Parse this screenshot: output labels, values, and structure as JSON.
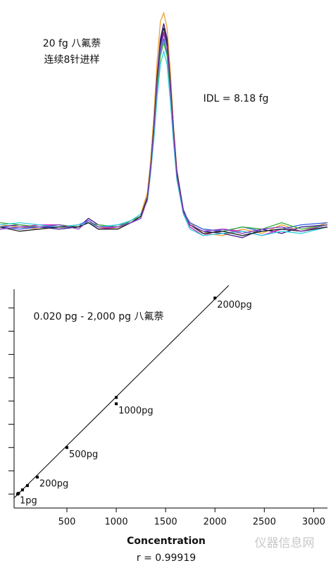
{
  "chart_data": [
    {
      "type": "line",
      "title": "20 fg 八氟萘",
      "subtitle": "连续8针进样",
      "annotation": "IDL = 8.18 fg",
      "xlim": [
        0,
        100
      ],
      "ylim": [
        -10,
        105
      ],
      "x": [
        0,
        6,
        12,
        18,
        24,
        27,
        30,
        36,
        40,
        43,
        45,
        46,
        47,
        48,
        49,
        50,
        51,
        52,
        53,
        54,
        56,
        58,
        62,
        68,
        74,
        80,
        86,
        92,
        100
      ],
      "series": [
        {
          "color": "#f0a030",
          "values": [
            1,
            0,
            -1,
            0,
            1,
            2,
            0,
            -1,
            3,
            6,
            16,
            31,
            52,
            78,
            96,
            100,
            93,
            73,
            47,
            27,
            7,
            2,
            -3,
            -4,
            -1,
            -3,
            1,
            -2,
            2
          ]
        },
        {
          "color": "#3a1a8a",
          "values": [
            0,
            1,
            0,
            -1,
            0,
            4,
            1,
            0,
            2,
            5,
            14,
            28,
            47,
            71,
            88,
            95,
            88,
            68,
            45,
            26,
            8,
            1,
            -2,
            -3,
            -5,
            -1,
            -3,
            0,
            1
          ]
        },
        {
          "color": "#d020c0",
          "values": [
            -1,
            0,
            1,
            1,
            0,
            2,
            -1,
            0,
            2,
            4,
            13,
            27,
            45,
            68,
            85,
            91,
            84,
            66,
            44,
            25,
            7,
            0,
            -4,
            -1,
            -2,
            -4,
            -1,
            -2,
            0
          ]
        },
        {
          "color": "#3060e0",
          "values": [
            0,
            -1,
            0,
            0,
            1,
            3,
            0,
            1,
            2,
            5,
            13,
            26,
            44,
            66,
            82,
            88,
            81,
            63,
            42,
            24,
            7,
            2,
            -1,
            -2,
            0,
            -2,
            -1,
            1,
            2
          ]
        },
        {
          "color": "#40b040",
          "values": [
            2,
            1,
            0,
            1,
            0,
            2,
            1,
            0,
            3,
            5,
            13,
            26,
            43,
            64,
            80,
            86,
            80,
            62,
            41,
            24,
            6,
            1,
            -3,
            -2,
            0,
            -1,
            2,
            -1,
            1
          ]
        },
        {
          "color": "#30d0e0",
          "values": [
            1,
            2,
            1,
            0,
            1,
            2,
            0,
            1,
            3,
            6,
            12,
            25,
            41,
            61,
            76,
            82,
            76,
            59,
            39,
            22,
            6,
            -1,
            -4,
            -3,
            -2,
            -4,
            -2,
            -3,
            0
          ]
        },
        {
          "color": "#202020",
          "values": [
            0,
            -2,
            -1,
            0,
            0,
            2,
            -1,
            -1,
            2,
            5,
            14,
            28,
            47,
            70,
            86,
            93,
            86,
            67,
            44,
            25,
            7,
            1,
            -3,
            -2,
            -4,
            -2,
            -1,
            -2,
            0
          ]
        },
        {
          "color": "#8040c0",
          "values": [
            -1,
            0,
            0,
            1,
            -1,
            3,
            0,
            0,
            2,
            4,
            13,
            27,
            45,
            68,
            84,
            90,
            84,
            65,
            43,
            24,
            7,
            1,
            -2,
            -1,
            -3,
            -1,
            0,
            -2,
            1
          ]
        }
      ]
    },
    {
      "type": "scatter",
      "title": "0.020 pg - 2,000 pg 八氟萘",
      "x_label": "Concentration",
      "annotation": "r = 0.99919",
      "watermark": "仪器信息网",
      "xlim": [
        -35,
        3140
      ],
      "ylim": [
        -150,
        2200
      ],
      "xticks": [
        500,
        1000,
        1500,
        2000,
        2500,
        3000
      ],
      "yticks": [
        0,
        250,
        500,
        750,
        1000,
        1250,
        1500,
        1750,
        2000
      ],
      "color": "#000000",
      "x": [
        1,
        10,
        50,
        100,
        200,
        500,
        1000,
        1000,
        2000
      ],
      "values": [
        0,
        8,
        45,
        91,
        182,
        500,
        970,
        1038,
        2106
      ],
      "point_labels": [
        "1pg",
        null,
        null,
        null,
        "200pg",
        "500pg",
        "1000pg",
        null,
        "2000pg"
      ],
      "fit": {
        "x": [
          -35,
          2140
        ],
        "y": [
          -42,
          2242
        ]
      }
    }
  ]
}
